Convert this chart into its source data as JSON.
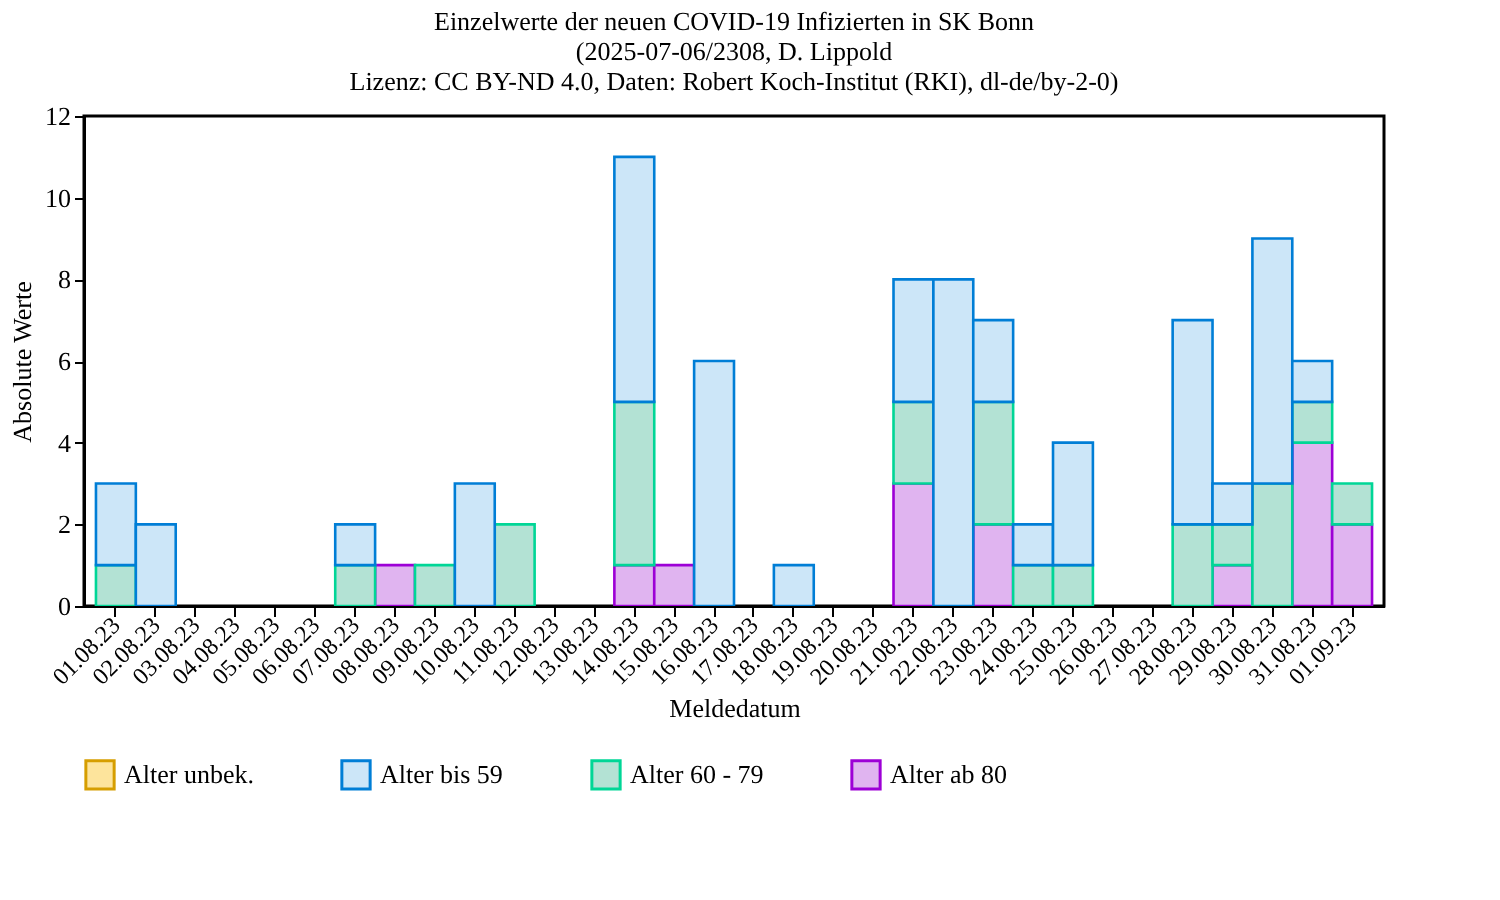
{
  "chart_data": {
    "type": "bar",
    "stacked": true,
    "title": [
      "Einzelwerte der neuen COVID-19 Infizierten in SK Bonn",
      "(2025-07-06/2308, D. Lippold",
      "Lizenz: CC BY-ND 4.0, Daten: Robert Koch-Institut (RKI), dl-de/by-2-0)"
    ],
    "xlabel": "Meldedatum",
    "ylabel": "Absolute Werte",
    "categories": [
      "01.08.23",
      "02.08.23",
      "03.08.23",
      "04.08.23",
      "05.08.23",
      "06.08.23",
      "07.08.23",
      "08.08.23",
      "09.08.23",
      "10.08.23",
      "11.08.23",
      "12.08.23",
      "13.08.23",
      "14.08.23",
      "15.08.23",
      "16.08.23",
      "17.08.23",
      "18.08.23",
      "19.08.23",
      "20.08.23",
      "21.08.23",
      "22.08.23",
      "23.08.23",
      "24.08.23",
      "25.08.23",
      "26.08.23",
      "27.08.23",
      "28.08.23",
      "29.08.23",
      "30.08.23",
      "31.08.23",
      "01.09.23"
    ],
    "series": [
      {
        "name": "Alter ab 80",
        "color": "#e0b4f0",
        "values": [
          0,
          0,
          0,
          0,
          0,
          0,
          0,
          1,
          0,
          0,
          0,
          0,
          0,
          1,
          1,
          0,
          0,
          0,
          0,
          0,
          3,
          0,
          2,
          0,
          0,
          0,
          0,
          0,
          1,
          0,
          4,
          2
        ]
      },
      {
        "name": "Alter 60 - 79",
        "color": "#b3e2d4",
        "values": [
          1,
          0,
          0,
          0,
          0,
          0,
          1,
          0,
          1,
          0,
          2,
          0,
          0,
          4,
          0,
          0,
          0,
          0,
          0,
          0,
          2,
          0,
          3,
          1,
          1,
          0,
          0,
          2,
          1,
          3,
          1,
          1
        ]
      },
      {
        "name": "Alter bis 59",
        "color": "#cce6f8",
        "values": [
          2,
          2,
          0,
          0,
          0,
          0,
          1,
          0,
          0,
          3,
          0,
          0,
          0,
          6,
          0,
          6,
          0,
          1,
          0,
          0,
          3,
          8,
          2,
          1,
          3,
          0,
          0,
          5,
          1,
          6,
          1,
          0
        ]
      },
      {
        "name": "Alter unbek.",
        "color": "#fde49c",
        "values": [
          0,
          0,
          0,
          0,
          0,
          0,
          0,
          0,
          0,
          0,
          0,
          0,
          0,
          0,
          0,
          0,
          0,
          0,
          0,
          0,
          0,
          0,
          0,
          0,
          0,
          0,
          0,
          0,
          0,
          0,
          0,
          0
        ]
      }
    ],
    "ylim": [
      0,
      12
    ],
    "yticks": [
      0,
      2,
      4,
      6,
      8,
      10,
      12
    ],
    "grid": false,
    "legend": "bottom"
  }
}
